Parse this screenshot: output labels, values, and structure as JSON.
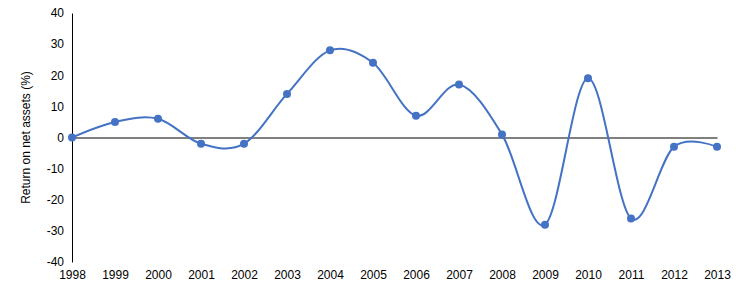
{
  "chart_data": {
    "type": "line",
    "ylabel": "Return on net assets (%)",
    "x": [
      1998,
      1999,
      2000,
      2001,
      2002,
      2003,
      2004,
      2005,
      2006,
      2007,
      2008,
      2009,
      2010,
      2011,
      2012,
      2013
    ],
    "values": [
      0,
      5,
      6,
      -2,
      -2,
      14,
      28,
      24,
      7,
      17,
      1,
      -28,
      19,
      -26,
      -3,
      -3
    ],
    "color": "#4472c4",
    "marker": "circle",
    "line_style": "smooth",
    "xlim": [
      1998,
      2013
    ],
    "xticks": [
      1998,
      1999,
      2000,
      2001,
      2002,
      2003,
      2004,
      2005,
      2006,
      2007,
      2008,
      2009,
      2010,
      2011,
      2012,
      2013
    ],
    "ylim": [
      -40,
      40
    ],
    "yticks": [
      -40,
      -30,
      -20,
      -10,
      0,
      10,
      20,
      30,
      40
    ],
    "grid": false
  }
}
